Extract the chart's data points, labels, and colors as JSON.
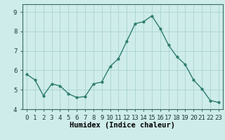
{
  "x": [
    0,
    1,
    2,
    3,
    4,
    5,
    6,
    7,
    8,
    9,
    10,
    11,
    12,
    13,
    14,
    15,
    16,
    17,
    18,
    19,
    20,
    21,
    22,
    23
  ],
  "y": [
    5.8,
    5.5,
    4.7,
    5.3,
    5.2,
    4.8,
    4.6,
    4.65,
    5.3,
    5.4,
    6.2,
    6.6,
    7.5,
    8.4,
    8.5,
    8.8,
    8.15,
    7.3,
    6.7,
    6.3,
    5.5,
    5.05,
    4.45,
    4.35
  ],
  "line_color": "#2e7d6e",
  "marker": "o",
  "marker_size": 2,
  "line_width": 1.0,
  "bg_color": "#ceecea",
  "grid_color": "#aad4d0",
  "xlabel": "Humidex (Indice chaleur)",
  "xlabel_fontsize": 7.5,
  "tick_fontsize": 6.5,
  "ylim": [
    4.0,
    9.4
  ],
  "xlim": [
    -0.5,
    23.5
  ],
  "yticks": [
    4,
    5,
    6,
    7,
    8,
    9
  ],
  "xtick_labels": [
    "0",
    "1",
    "2",
    "3",
    "4",
    "5",
    "6",
    "7",
    "8",
    "9",
    "10",
    "11",
    "12",
    "13",
    "14",
    "15",
    "16",
    "17",
    "18",
    "19",
    "20",
    "21",
    "22",
    "23"
  ]
}
